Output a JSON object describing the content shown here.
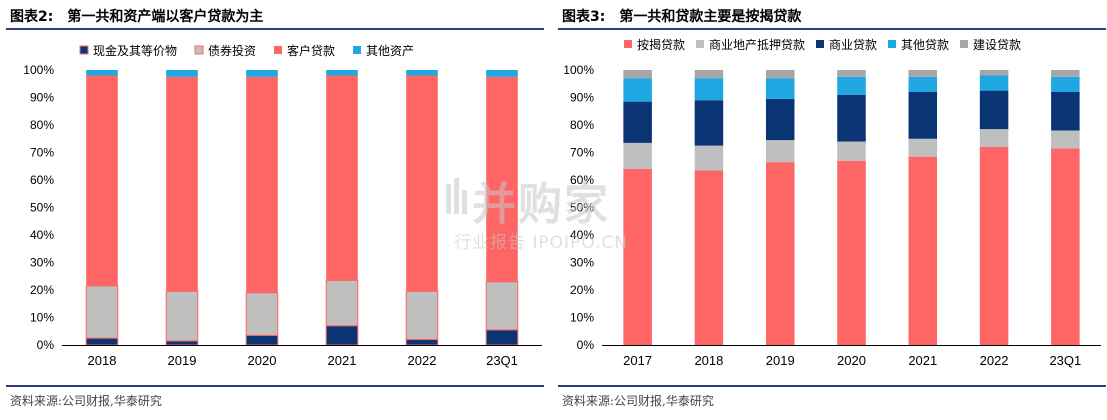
{
  "charts": [
    {
      "id": "left",
      "fig_label": "图表2:",
      "title": "第一共和资产端以客户贷款为主",
      "source": "资料来源:公司财报,华泰研究",
      "chart_data": {
        "type": "bar",
        "stacked": true,
        "categories": [
          "2018",
          "2019",
          "2020",
          "2021",
          "2022",
          "23Q1"
        ],
        "series": [
          {
            "name": "现金及其等价物",
            "color": "#0b3474",
            "values": [
              2.5,
              1.5,
              3.5,
              7.0,
              2.0,
              5.5
            ]
          },
          {
            "name": "债券投资",
            "color": "#bfbfbf",
            "values": [
              19.0,
              18.0,
              15.5,
              16.5,
              17.5,
              17.5
            ]
          },
          {
            "name": "客户贷款",
            "color": "#fe6565",
            "values": [
              76.5,
              78.0,
              78.5,
              74.5,
              78.5,
              74.5
            ]
          },
          {
            "name": "其他资产",
            "color": "#1ea7e1",
            "values": [
              2.0,
              2.5,
              2.5,
              2.0,
              2.0,
              2.5
            ]
          }
        ],
        "ylim": [
          0,
          100
        ],
        "yticks": [
          "0%",
          "10%",
          "20%",
          "30%",
          "40%",
          "50%",
          "60%",
          "70%",
          "80%",
          "90%",
          "100%"
        ],
        "legend": "top"
      }
    },
    {
      "id": "right",
      "fig_label": "图表3:",
      "title": "第一共和贷款主要是按揭贷款",
      "source": "资料来源:公司财报,华泰研究",
      "chart_data": {
        "type": "bar",
        "stacked": true,
        "categories": [
          "2017",
          "2018",
          "2019",
          "2020",
          "2021",
          "2022",
          "23Q1"
        ],
        "series": [
          {
            "name": "按揭贷款",
            "color": "#fe6565",
            "values": [
              64.0,
              63.5,
              66.5,
              67.0,
              68.5,
              72.0,
              71.5
            ]
          },
          {
            "name": "商业地产抵押贷款",
            "color": "#bfbfbf",
            "values": [
              9.5,
              9.0,
              8.0,
              7.0,
              6.5,
              6.5,
              6.5
            ]
          },
          {
            "name": "商业贷款",
            "color": "#0b3474",
            "values": [
              15.0,
              16.5,
              15.0,
              17.0,
              17.0,
              14.0,
              14.0
            ]
          },
          {
            "name": "其他贷款",
            "color": "#1ea7e1",
            "values": [
              8.5,
              8.0,
              7.5,
              6.5,
              5.5,
              5.5,
              5.5
            ]
          },
          {
            "name": "建设贷款",
            "color": "#a6a6a6",
            "values": [
              3.0,
              3.0,
              3.0,
              2.5,
              2.5,
              2.0,
              2.5
            ]
          }
        ],
        "ylim": [
          0,
          100
        ],
        "yticks": [
          "0%",
          "10%",
          "20%",
          "30%",
          "40%",
          "50%",
          "60%",
          "70%",
          "80%",
          "90%",
          "100%"
        ],
        "legend": "top"
      }
    }
  ],
  "watermark": {
    "text_cn": "并购家",
    "text_en": "行业报告 IPOIPO.CN"
  }
}
